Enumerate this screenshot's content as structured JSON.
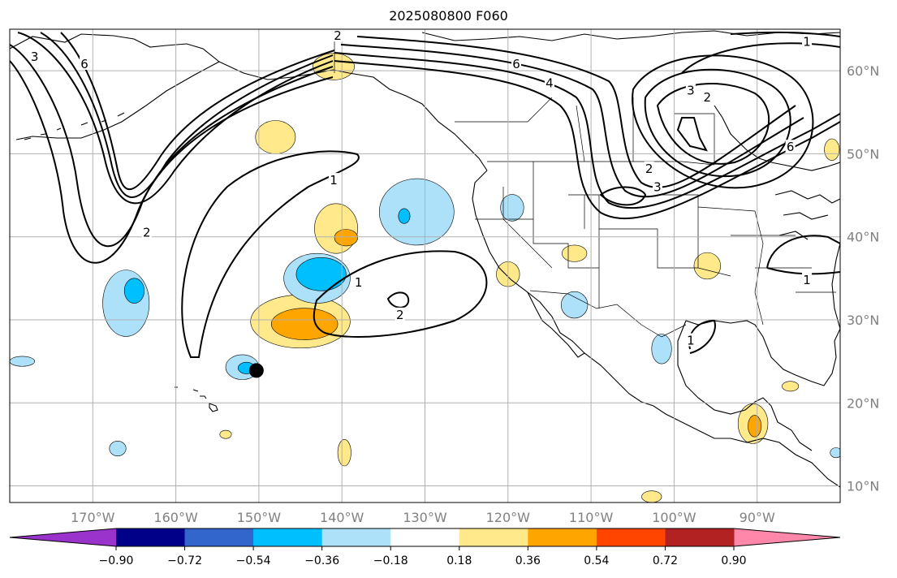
{
  "title": "2025080800 F060",
  "map": {
    "lon_range": [
      -180,
      -80
    ],
    "lat_range": [
      8,
      65
    ],
    "lon_ticks": [
      {
        "value": -170,
        "label": "170°W"
      },
      {
        "value": -160,
        "label": "160°W"
      },
      {
        "value": -150,
        "label": "150°W"
      },
      {
        "value": -140,
        "label": "140°W"
      },
      {
        "value": -130,
        "label": "130°W"
      },
      {
        "value": -120,
        "label": "120°W"
      },
      {
        "value": -110,
        "label": "110°W"
      },
      {
        "value": -100,
        "label": "100°W"
      },
      {
        "value": -90,
        "label": "90°W"
      }
    ],
    "lat_ticks": [
      {
        "value": 60,
        "label": "60°N"
      },
      {
        "value": 50,
        "label": "50°N"
      },
      {
        "value": 40,
        "label": "40°N"
      },
      {
        "value": 30,
        "label": "30°N"
      },
      {
        "value": 20,
        "label": "20°N"
      },
      {
        "value": 10,
        "label": "10°N"
      }
    ],
    "grid": true,
    "marker": {
      "lon": -150.3,
      "lat": 23.9,
      "color": "#000000"
    },
    "contour_labels": [
      {
        "text": "3",
        "lon": -177,
        "lat": 61.7
      },
      {
        "text": "6",
        "lon": -171,
        "lat": 60.8
      },
      {
        "text": "2",
        "lon": -140.5,
        "lat": 64.2
      },
      {
        "text": "2",
        "lon": -163.5,
        "lat": 40.5
      },
      {
        "text": "1",
        "lon": -141,
        "lat": 46.8
      },
      {
        "text": "1",
        "lon": -138,
        "lat": 34.5
      },
      {
        "text": "2",
        "lon": -133,
        "lat": 30.6
      },
      {
        "text": "6",
        "lon": -119,
        "lat": 60.8
      },
      {
        "text": "4",
        "lon": -115,
        "lat": 58.5
      },
      {
        "text": "2",
        "lon": -96,
        "lat": 56.8
      },
      {
        "text": "3",
        "lon": -98,
        "lat": 57.6
      },
      {
        "text": "6",
        "lon": -86,
        "lat": 50.8
      },
      {
        "text": "2",
        "lon": -103,
        "lat": 48.2
      },
      {
        "text": "3",
        "lon": -102,
        "lat": 46
      },
      {
        "text": "1",
        "lon": -84,
        "lat": 63.5
      },
      {
        "text": "1",
        "lon": -84,
        "lat": 34.8
      },
      {
        "text": "1",
        "lon": -98,
        "lat": 27.5
      }
    ],
    "shaded_areas": [
      {
        "level": "0.18",
        "lon": -141,
        "lat": 60.5,
        "rlon": 2.5,
        "rlat": 1.6
      },
      {
        "level": "0.18",
        "lon": -140.7,
        "lat": 41,
        "rlon": 2.6,
        "rlat": 3
      },
      {
        "level": "0.36",
        "lon": -139.5,
        "lat": 39.9,
        "rlon": 1.4,
        "rlat": 1
      },
      {
        "level": "0.18",
        "lon": -145,
        "lat": 29.8,
        "rlon": 6,
        "rlat": 3.2
      },
      {
        "level": "0.36",
        "lon": -144.5,
        "lat": 29.5,
        "rlon": 4,
        "rlat": 1.9
      },
      {
        "level": "0.18",
        "lon": -148,
        "lat": 52,
        "rlon": 2.4,
        "rlat": 2
      },
      {
        "level": "0.18",
        "lon": -120,
        "lat": 35.5,
        "rlon": 1.4,
        "rlat": 1.5
      },
      {
        "level": "0.18",
        "lon": -112,
        "lat": 38,
        "rlon": 1.5,
        "rlat": 1
      },
      {
        "level": "0.18",
        "lon": -96,
        "lat": 36.5,
        "rlon": 1.6,
        "rlat": 1.6
      },
      {
        "level": "0.18",
        "lon": -90.5,
        "lat": 17.5,
        "rlon": 1.8,
        "rlat": 2.4
      },
      {
        "level": "0.36",
        "lon": -90.3,
        "lat": 17.2,
        "rlon": 0.8,
        "rlat": 1.3
      },
      {
        "level": "0.18",
        "lon": -139.7,
        "lat": 14,
        "rlon": 0.8,
        "rlat": 1.6
      },
      {
        "level": "0.18",
        "lon": -81,
        "lat": 50.5,
        "rlon": 0.9,
        "rlat": 1.3
      },
      {
        "level": "0.18",
        "lon": -86,
        "lat": 22,
        "rlon": 1,
        "rlat": 0.6
      },
      {
        "level": "0.18",
        "lon": -102.7,
        "lat": 8.7,
        "rlon": 1.2,
        "rlat": 0.7
      },
      {
        "level": "0.18",
        "lon": -154,
        "lat": 16.2,
        "rlon": 0.7,
        "rlat": 0.5
      },
      {
        "level": "-0.18",
        "lon": -131,
        "lat": 43,
        "rlon": 4.5,
        "rlat": 4
      },
      {
        "level": "-0.36",
        "lon": -132.5,
        "lat": 42.5,
        "rlon": 0.7,
        "rlat": 0.9
      },
      {
        "level": "-0.18",
        "lon": -143,
        "lat": 35,
        "rlon": 4,
        "rlat": 3
      },
      {
        "level": "-0.36",
        "lon": -142.5,
        "lat": 35.5,
        "rlon": 3,
        "rlat": 2
      },
      {
        "level": "-0.18",
        "lon": -166,
        "lat": 32,
        "rlon": 2.8,
        "rlat": 4
      },
      {
        "level": "-0.36",
        "lon": -165,
        "lat": 33.5,
        "rlon": 1.2,
        "rlat": 1.5
      },
      {
        "level": "-0.18",
        "lon": -119.5,
        "lat": 43.5,
        "rlon": 1.4,
        "rlat": 1.6
      },
      {
        "level": "-0.18",
        "lon": -112,
        "lat": 31.8,
        "rlon": 1.6,
        "rlat": 1.6
      },
      {
        "level": "-0.18",
        "lon": -101.5,
        "lat": 26.5,
        "rlon": 1.2,
        "rlat": 1.8
      },
      {
        "level": "-0.18",
        "lon": -152,
        "lat": 24.3,
        "rlon": 2,
        "rlat": 1.5
      },
      {
        "level": "-0.36",
        "lon": -151.5,
        "lat": 24.2,
        "rlon": 1,
        "rlat": 0.7
      },
      {
        "level": "-0.18",
        "lon": -178.5,
        "lat": 25,
        "rlon": 1.5,
        "rlat": 0.6
      },
      {
        "level": "-0.18",
        "lon": -167,
        "lat": 14.5,
        "rlon": 1,
        "rlat": 0.9
      },
      {
        "level": "-0.18",
        "lon": -80.5,
        "lat": 14,
        "rlon": 0.7,
        "rlat": 0.6
      }
    ]
  },
  "colorbar": {
    "colors": [
      "#9933cc",
      "#000088",
      "#3366cc",
      "#00bfff",
      "#ade1fa",
      "#ffffff",
      "#ffe98a",
      "#ffa500",
      "#ff4500",
      "#b22222",
      "#ff88aa"
    ],
    "boundaries": [
      -0.9,
      -0.72,
      -0.54,
      -0.36,
      -0.18,
      0.18,
      0.36,
      0.54,
      0.72,
      0.9
    ],
    "tick_labels": [
      "−0.90",
      "−0.72",
      "−0.54",
      "−0.36",
      "−0.18",
      "0.18",
      "0.36",
      "0.54",
      "0.72",
      "0.90"
    ],
    "extend": "both"
  },
  "colors": {
    "positive_fill": "#ffe98a",
    "positive_fill_strong": "#ffa500",
    "negative_fill": "#ade1fa",
    "negative_fill_strong": "#00bfff",
    "contour": "#000000",
    "grid": "#b0b0b0",
    "tick_text": "#808080"
  }
}
